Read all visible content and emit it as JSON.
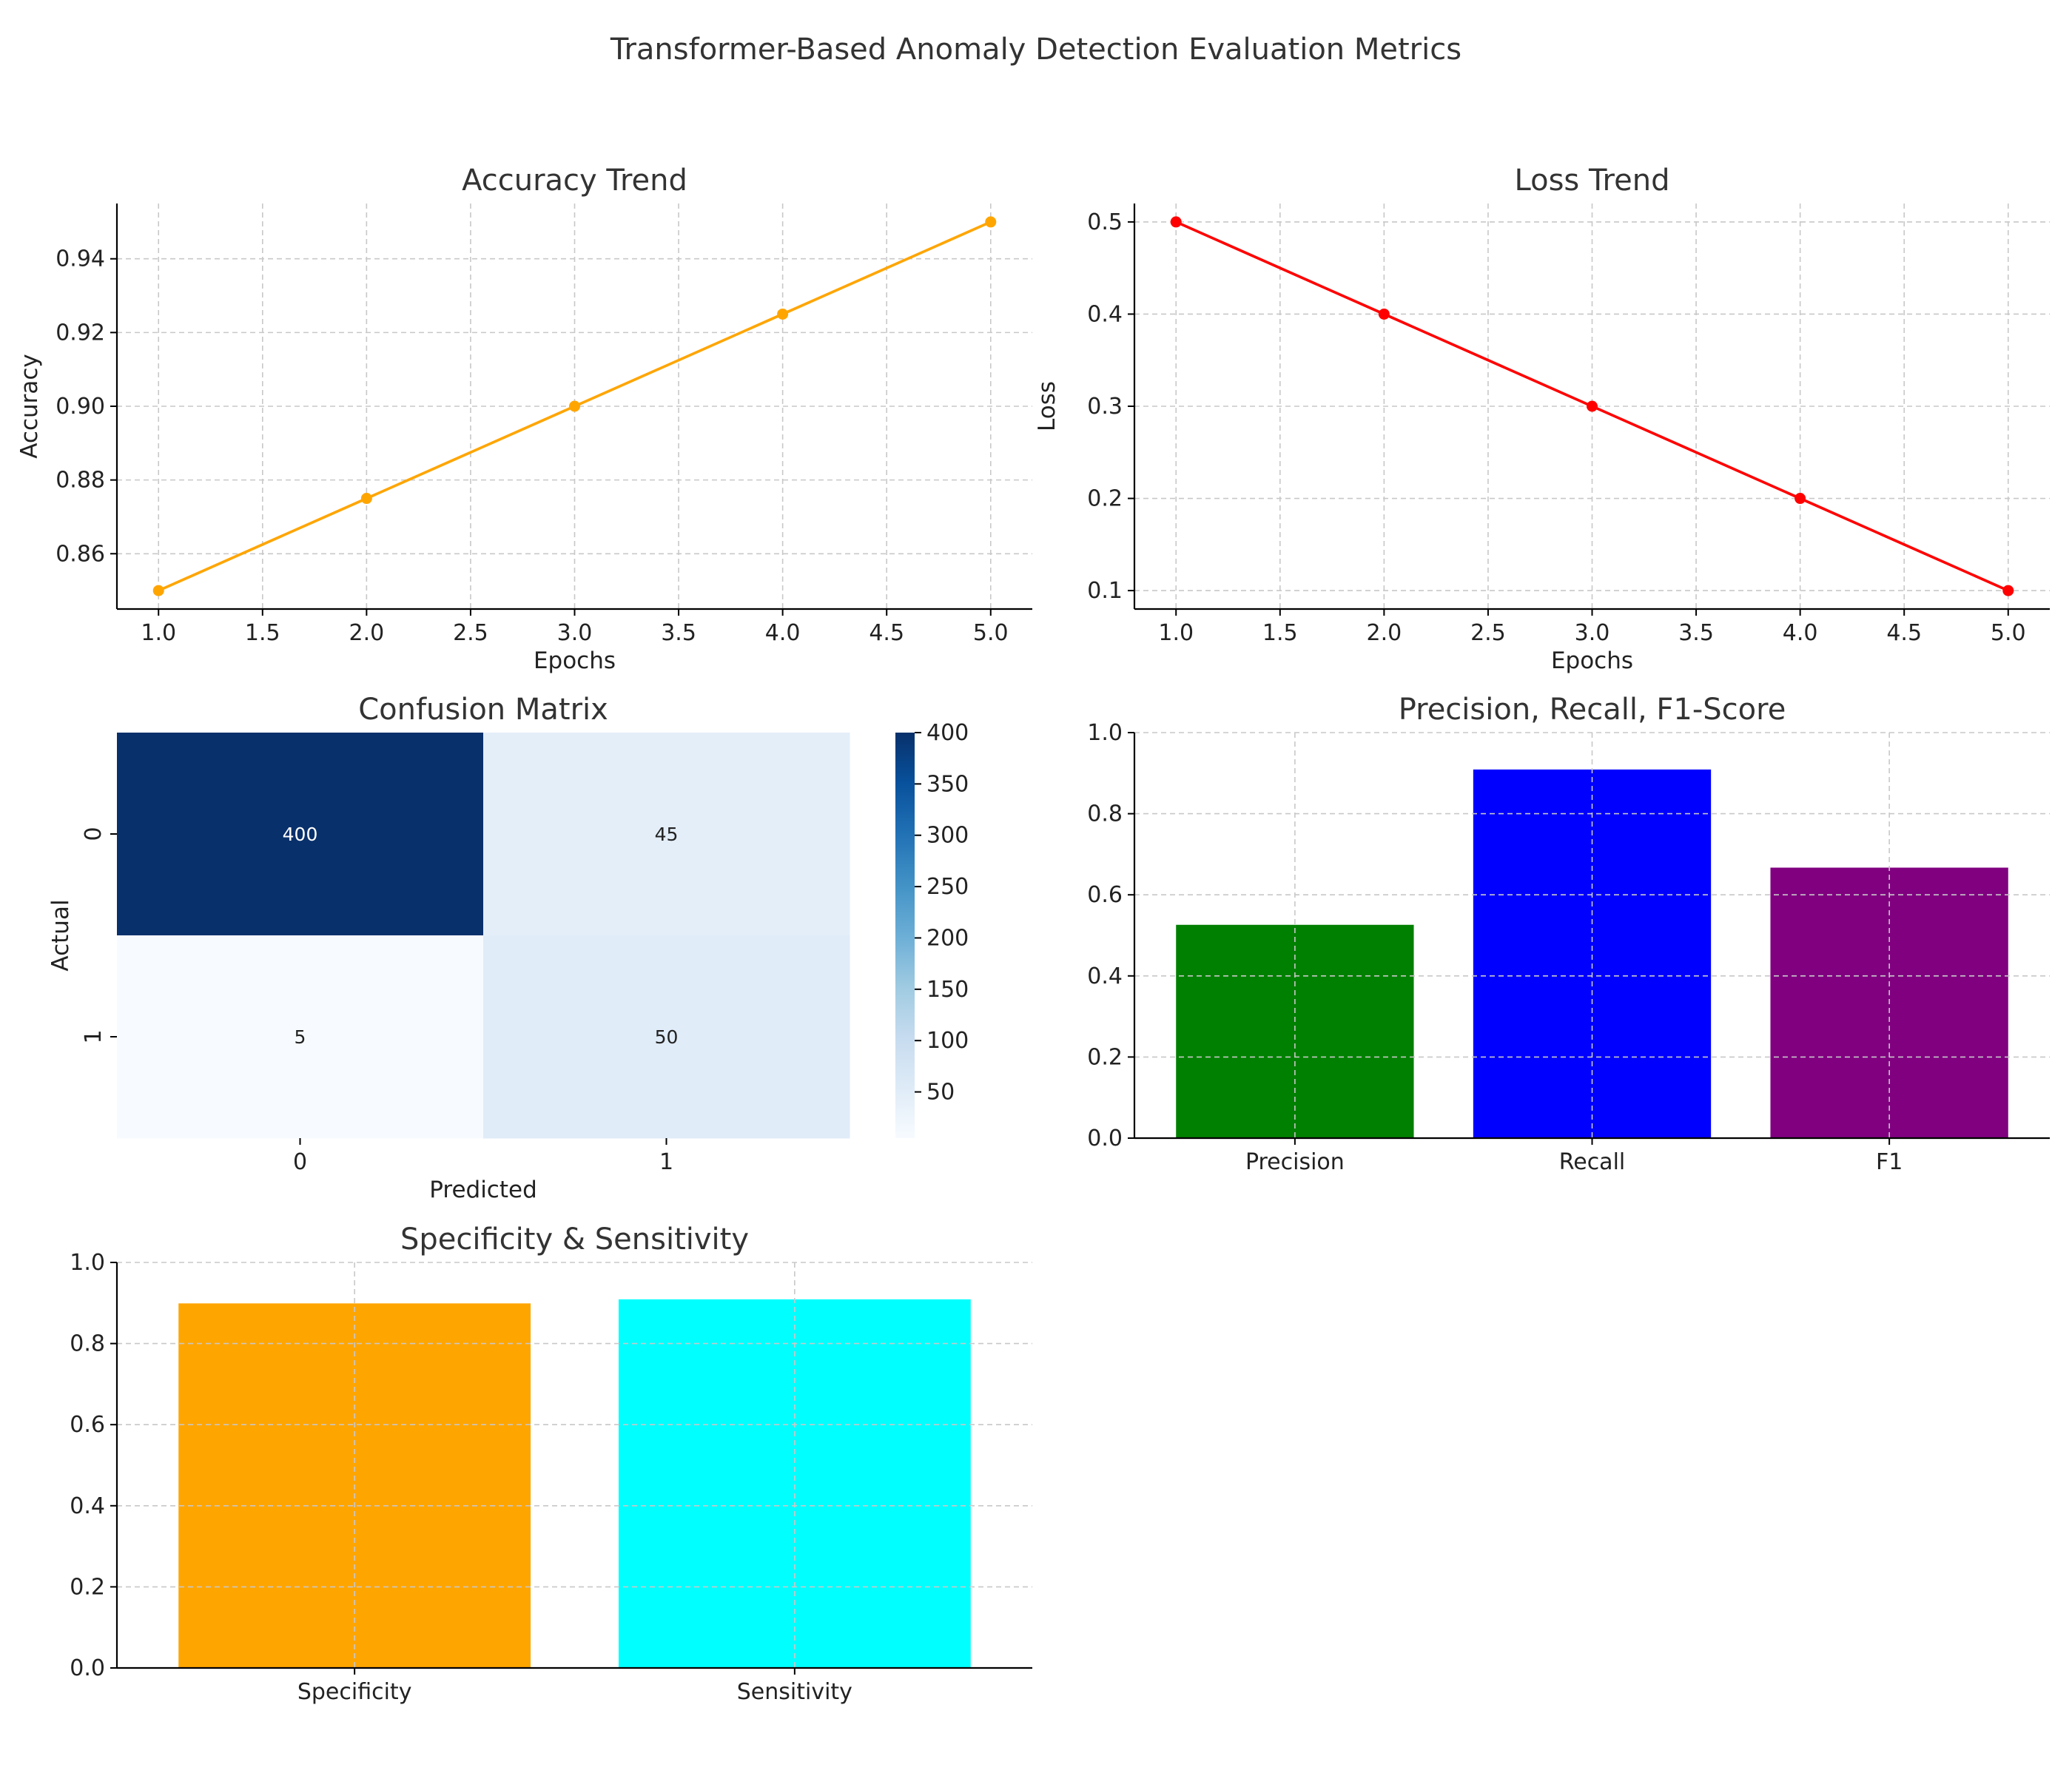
{
  "title": "Transformer-Based Anomaly Detection Evaluation Metrics",
  "chart_data": [
    {
      "id": "accuracy",
      "type": "line",
      "title": "Accuracy Trend",
      "xlabel": "Epochs",
      "ylabel": "Accuracy",
      "x": [
        1,
        2,
        3,
        4,
        5
      ],
      "series": [
        {
          "values": [
            0.85,
            0.875,
            0.9,
            0.925,
            0.95
          ],
          "color": "#FFA500",
          "marker": "circle"
        }
      ],
      "xlim": [
        0.8,
        5.2
      ],
      "ylim": [
        0.845,
        0.955
      ],
      "xticks": [
        1.0,
        1.5,
        2.0,
        2.5,
        3.0,
        3.5,
        4.0,
        4.5,
        5.0
      ],
      "xtick_labels": [
        "1.0",
        "1.5",
        "2.0",
        "2.5",
        "3.0",
        "3.5",
        "4.0",
        "4.5",
        "5.0"
      ],
      "yticks": [
        0.86,
        0.88,
        0.9,
        0.92,
        0.94
      ],
      "ytick_labels": [
        "0.86",
        "0.88",
        "0.90",
        "0.92",
        "0.94"
      ],
      "grid": true
    },
    {
      "id": "loss",
      "type": "line",
      "title": "Loss Trend",
      "xlabel": "Epochs",
      "ylabel": "Loss",
      "x": [
        1,
        2,
        3,
        4,
        5
      ],
      "series": [
        {
          "values": [
            0.5,
            0.4,
            0.3,
            0.2,
            0.1
          ],
          "color": "#FF0000",
          "marker": "circle"
        }
      ],
      "xlim": [
        0.8,
        5.2
      ],
      "ylim": [
        0.08,
        0.52
      ],
      "xticks": [
        1.0,
        1.5,
        2.0,
        2.5,
        3.0,
        3.5,
        4.0,
        4.5,
        5.0
      ],
      "xtick_labels": [
        "1.0",
        "1.5",
        "2.0",
        "2.5",
        "3.0",
        "3.5",
        "4.0",
        "4.5",
        "5.0"
      ],
      "yticks": [
        0.1,
        0.2,
        0.3,
        0.4,
        0.5
      ],
      "ytick_labels": [
        "0.1",
        "0.2",
        "0.3",
        "0.4",
        "0.5"
      ],
      "grid": true
    },
    {
      "id": "confusion",
      "type": "heatmap",
      "title": "Confusion Matrix",
      "xlabel": "Predicted",
      "ylabel": "Actual",
      "x_categories": [
        "0",
        "1"
      ],
      "y_categories": [
        "0",
        "1"
      ],
      "values": [
        [
          400,
          45
        ],
        [
          5,
          50
        ]
      ],
      "colormap": "Blues",
      "vmin": 5,
      "vmax": 400,
      "colorbar_ticks": [
        50,
        100,
        150,
        200,
        250,
        300,
        350,
        400
      ],
      "colorbar_tick_labels": [
        "50",
        "100",
        "150",
        "200",
        "250",
        "300",
        "350",
        "400"
      ]
    },
    {
      "id": "prf",
      "type": "bar",
      "title": "Precision, Recall, F1-Score",
      "categories": [
        "Precision",
        "Recall",
        "F1"
      ],
      "values": [
        0.526,
        0.909,
        0.667
      ],
      "colors": [
        "#008000",
        "#0000FF",
        "#800080"
      ],
      "ylim": [
        0,
        1
      ],
      "yticks": [
        0.0,
        0.2,
        0.4,
        0.6,
        0.8,
        1.0
      ],
      "ytick_labels": [
        "0.0",
        "0.2",
        "0.4",
        "0.6",
        "0.8",
        "1.0"
      ],
      "grid": true
    },
    {
      "id": "specsens",
      "type": "bar",
      "title": "Specificity & Sensitivity",
      "categories": [
        "Specificity",
        "Sensitivity"
      ],
      "values": [
        0.899,
        0.909
      ],
      "colors": [
        "#FFA500",
        "#00FFFF"
      ],
      "ylim": [
        0,
        1
      ],
      "yticks": [
        0.0,
        0.2,
        0.4,
        0.6,
        0.8,
        1.0
      ],
      "ytick_labels": [
        "0.0",
        "0.2",
        "0.4",
        "0.6",
        "0.8",
        "1.0"
      ],
      "grid": true
    }
  ]
}
